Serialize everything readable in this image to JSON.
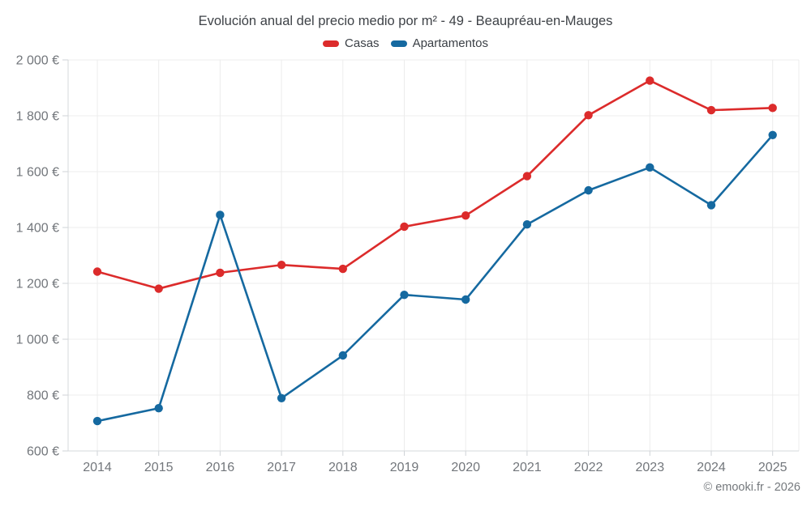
{
  "title": "Evolución anual del precio medio por m² - 49 - Beaupréau-en-Mauges",
  "legend": {
    "items": [
      {
        "label": "Casas",
        "color": "#dc2b2b"
      },
      {
        "label": "Apartamentos",
        "color": "#1569a0"
      }
    ]
  },
  "footer": {
    "copyright": "© emooki.fr - 2026"
  },
  "colors": {
    "casas": "#dc2b2b",
    "apartamentos": "#1569a0",
    "grid": "#ececec",
    "axis": "#d5d8db",
    "tick": "#cfd3d7",
    "axis_label": "#72767b",
    "title_text": "#3e4247"
  },
  "chart_data": {
    "type": "line",
    "title": "Evolución anual del precio medio por m² - 49 - Beaupréau-en-Mauges",
    "x": [
      2014,
      2015,
      2016,
      2017,
      2018,
      2019,
      2020,
      2021,
      2022,
      2023,
      2024,
      2025
    ],
    "series": [
      {
        "name": "Casas",
        "color": "#dc2b2b",
        "values": [
          1242,
          1181,
          1238,
          1266,
          1252,
          1403,
          1443,
          1584,
          1802,
          1926,
          1820,
          1828
        ]
      },
      {
        "name": "Apartamentos",
        "color": "#1569a0",
        "values": [
          707,
          753,
          1445,
          789,
          942,
          1159,
          1142,
          1411,
          1533,
          1615,
          1480,
          1731
        ]
      }
    ],
    "ylim": [
      600,
      2000
    ],
    "ytick_step": 200,
    "y_unit": "€",
    "ylabel_format": "{value} €",
    "grid": true,
    "legend_position": "top",
    "marker": "circle"
  }
}
